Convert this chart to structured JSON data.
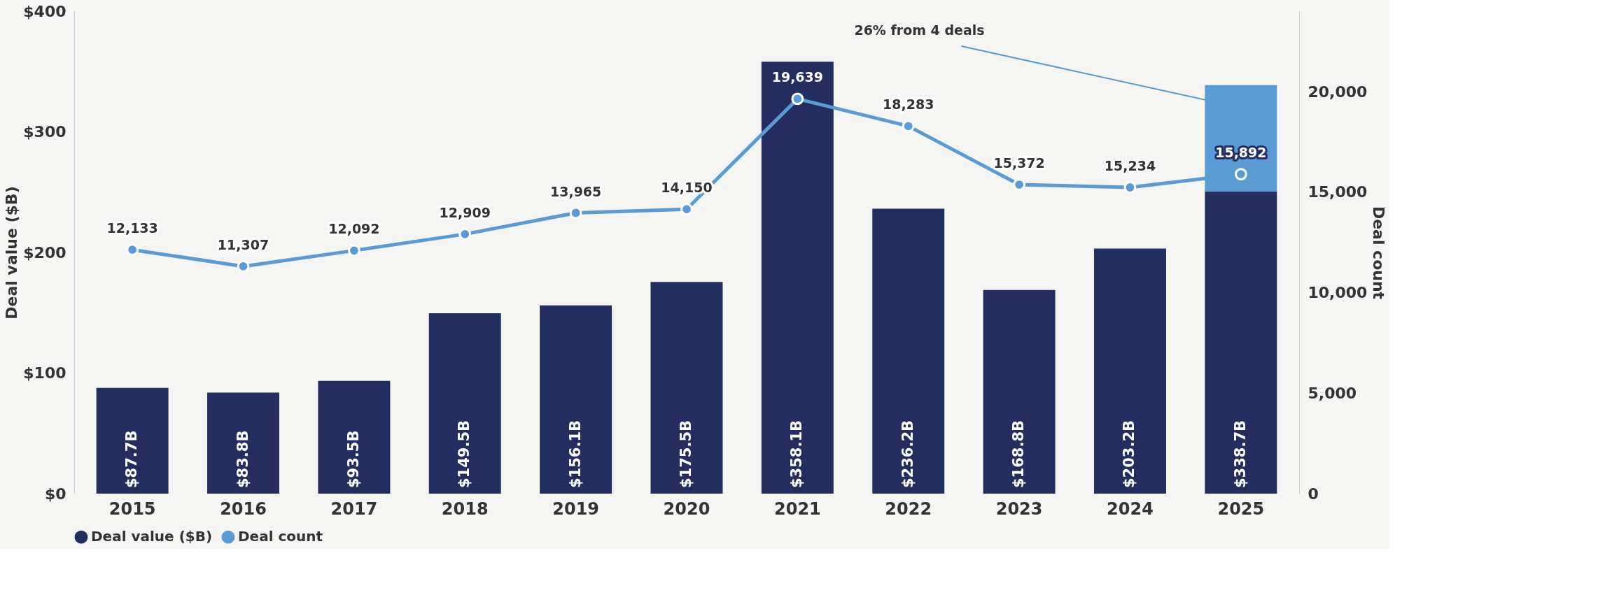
{
  "chart_data": {
    "type": "bar",
    "stacked": true,
    "categories": [
      "2015",
      "2016",
      "2017",
      "2018",
      "2019",
      "2020",
      "2021",
      "2022",
      "2023",
      "2024",
      "2025"
    ],
    "series": [
      {
        "name": "Deal value ($B)",
        "color": "#232d5f",
        "values": [
          87.7,
          83.8,
          93.5,
          149.5,
          156.1,
          175.5,
          358.1,
          236.2,
          168.8,
          203.2,
          250.6
        ],
        "value_labels": [
          "$87.7B",
          "$83.8B",
          "$93.5B",
          "$149.5B",
          "$156.1B",
          "$175.5B",
          "$358.1B",
          "$236.2B",
          "$168.8B",
          "$203.2B",
          null
        ]
      },
      {
        "color": "#5b9bd5",
        "values": [
          null,
          null,
          null,
          null,
          null,
          null,
          null,
          null,
          null,
          null,
          88.1
        ]
      },
      {
        "name": "Deal count",
        "type": "line",
        "axis": "y2",
        "color": "#5b9bd5",
        "marker": "circle",
        "values": [
          12133,
          11307,
          12092,
          12909,
          13965,
          14150,
          19639,
          18283,
          15372,
          15234,
          15892
        ],
        "value_labels": [
          "12,133",
          "11,307",
          "12,092",
          "12,909",
          "13,965",
          "14,150",
          "19,639",
          "18,283",
          "15,372",
          "15,234",
          "15,892"
        ]
      }
    ],
    "ylabel": "Deal value ($B)",
    "y2label": "Deal count",
    "ylim": [
      0,
      400
    ],
    "yticks": [
      {
        "value": 0,
        "label": "$0"
      },
      {
        "value": 100,
        "label": "$100"
      },
      {
        "value": 200,
        "label": "$200"
      },
      {
        "value": 300,
        "label": "$300"
      },
      {
        "value": 400,
        "label": "$400"
      }
    ],
    "y2lim": [
      0,
      24000
    ],
    "y2ticks": [
      {
        "value": 0,
        "label": "0"
      },
      {
        "value": 5000,
        "label": "5,000"
      },
      {
        "value": 10000,
        "label": "10,000"
      },
      {
        "value": 15000,
        "label": "15,000"
      },
      {
        "value": 20000,
        "label": "20,000"
      }
    ],
    "totals": [
      null,
      null,
      null,
      null,
      null,
      null,
      null,
      null,
      null,
      null,
      "$338.7B"
    ],
    "annotations": [
      "26% from 4 deals"
    ],
    "legend": "bottom",
    "grid": false
  }
}
